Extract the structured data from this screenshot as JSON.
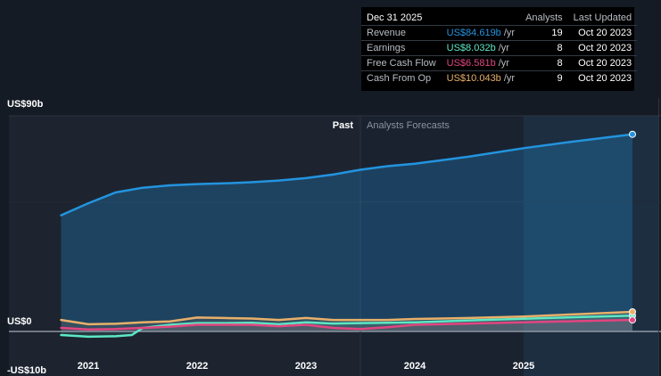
{
  "chart_data": {
    "type": "area",
    "y_axis_labels": [
      {
        "label": "US$90b",
        "value": 90
      },
      {
        "label": "US$0",
        "value": 0
      },
      {
        "label": "-US$10b",
        "value": -10
      }
    ],
    "ylim": [
      -10,
      90
    ],
    "x_tick_labels": [
      "2021",
      "2022",
      "2023",
      "2024",
      "2025"
    ],
    "x_tick_values": [
      2021,
      2022,
      2023,
      2024,
      2025
    ],
    "xlim": [
      2020.5,
      2026.25
    ],
    "past_label": "Past",
    "forecast_label": "Analysts Forecasts",
    "forecast_start": 2023.5,
    "grid": true,
    "colors": {
      "revenue": "#2394df",
      "earnings": "#5de8c4",
      "free_cash_flow": "#e2457f",
      "cash_from_op": "#e8b06a"
    },
    "series": [
      {
        "name": "Revenue",
        "key": "revenue",
        "x": [
          2020.75,
          2021.0,
          2021.25,
          2021.5,
          2021.75,
          2022.0,
          2022.25,
          2022.5,
          2022.75,
          2023.0,
          2023.25,
          2023.5,
          2023.75,
          2024.0,
          2024.5,
          2025.0,
          2025.5,
          2026.0
        ],
        "values": [
          48.5,
          53.5,
          58.0,
          60.0,
          61.0,
          61.5,
          61.8,
          62.3,
          63.0,
          64.0,
          65.5,
          67.5,
          69.0,
          70.0,
          73.0,
          76.5,
          79.5,
          82.3
        ]
      },
      {
        "name": "Earnings",
        "key": "earnings",
        "x": [
          2020.75,
          2021.0,
          2021.25,
          2021.4,
          2021.5,
          2021.75,
          2022.0,
          2022.25,
          2022.5,
          2022.75,
          2023.0,
          2023.25,
          2023.5,
          2023.75,
          2024.0,
          2024.5,
          2025.0,
          2025.5,
          2026.0
        ],
        "values": [
          -1.5,
          -2.2,
          -2.0,
          -1.5,
          1.5,
          2.8,
          3.5,
          3.5,
          3.6,
          3.0,
          3.8,
          3.3,
          3.5,
          3.6,
          3.8,
          4.6,
          5.3,
          6.0,
          6.6
        ]
      },
      {
        "name": "Free Cash Flow",
        "key": "free_cash_flow",
        "x": [
          2020.75,
          2021.0,
          2021.25,
          2021.5,
          2021.75,
          2022.0,
          2022.25,
          2022.5,
          2022.75,
          2023.0,
          2023.25,
          2023.5,
          2023.75,
          2024.0,
          2024.5,
          2025.0,
          2025.5,
          2026.0
        ],
        "values": [
          1.5,
          0.8,
          1.0,
          1.5,
          2.0,
          2.8,
          2.8,
          2.8,
          2.2,
          2.8,
          1.5,
          1.0,
          1.8,
          2.8,
          3.3,
          3.8,
          4.3,
          4.8
        ]
      },
      {
        "name": "Cash From Op",
        "key": "cash_from_op",
        "x": [
          2020.75,
          2021.0,
          2021.25,
          2021.5,
          2021.75,
          2022.0,
          2022.25,
          2022.5,
          2022.75,
          2023.0,
          2023.25,
          2023.5,
          2023.75,
          2024.0,
          2024.5,
          2025.0,
          2025.5,
          2026.0
        ],
        "values": [
          4.8,
          3.0,
          3.2,
          3.8,
          4.2,
          5.8,
          5.6,
          5.4,
          4.8,
          5.6,
          4.8,
          4.8,
          4.8,
          5.2,
          5.6,
          6.2,
          7.2,
          8.2
        ]
      }
    ]
  },
  "tooltip": {
    "date": "Dec 31 2025",
    "col_analysts": "Analysts",
    "col_updated": "Last Updated",
    "rows": [
      {
        "name": "Revenue",
        "value": "US$84.619b",
        "unit": " /yr",
        "analysts": "19",
        "updated": "Oct 20 2023",
        "color": "#2394df"
      },
      {
        "name": "Earnings",
        "value": "US$8.032b",
        "unit": " /yr",
        "analysts": "8",
        "updated": "Oct 20 2023",
        "color": "#5de8c4"
      },
      {
        "name": "Free Cash Flow",
        "value": "US$6.581b",
        "unit": " /yr",
        "analysts": "8",
        "updated": "Oct 20 2023",
        "color": "#e2457f"
      },
      {
        "name": "Cash From Op",
        "value": "US$10.043b",
        "unit": " /yr",
        "analysts": "9",
        "updated": "Oct 20 2023",
        "color": "#e8b06a"
      }
    ]
  }
}
